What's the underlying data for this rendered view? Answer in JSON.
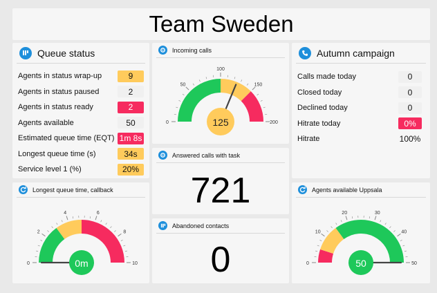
{
  "title": "Team Sweden",
  "colors": {
    "green": "#1ec85a",
    "yellow": "#ffcb5c",
    "red": "#f62b5f",
    "blue": "#1e8fdb",
    "panel": "#f6f6f6"
  },
  "queue_status": {
    "title": "Queue status",
    "icon": "bars-icon",
    "rows": [
      {
        "label": "Agents in status wrap-up",
        "value": "9",
        "color": "#ffcb5c"
      },
      {
        "label": "Agents in status paused",
        "value": "2",
        "color": "#f0f0f0"
      },
      {
        "label": "Agents in status ready",
        "value": "2",
        "color": "#f62b5f"
      },
      {
        "label": "Agents available",
        "value": "50",
        "color": "#f0f0f0"
      },
      {
        "label": "Estimated queue time (EQT)",
        "value": "1m 8s",
        "color": "#f62b5f"
      },
      {
        "label": "Longest queue time (s)",
        "value": "34s",
        "color": "#ffcb5c"
      },
      {
        "label": "Service level 1 (%)",
        "value": "20%",
        "color": "#ffcb5c"
      }
    ]
  },
  "incoming_calls": {
    "title": "Incoming calls",
    "icon": "gear-icon",
    "value": "125",
    "ticks": [
      "0",
      "50",
      "100",
      "150",
      "200"
    ],
    "needle": 125
  },
  "answered_calls": {
    "title": "Answered calls with task",
    "icon": "gear-icon",
    "value": "721"
  },
  "abandoned": {
    "title": "Abandoned contacts",
    "icon": "bars-icon",
    "value": "0"
  },
  "longest_callback": {
    "title": "Longest queue time, callback",
    "icon": "refresh-icon",
    "value": "0m",
    "ticks": [
      "0",
      "2",
      "4",
      "6",
      "8",
      "10"
    ],
    "needle": 0
  },
  "autumn_campaign": {
    "title": "Autumn campaign",
    "icon": "phone-icon",
    "rows": [
      {
        "label": "Calls made today",
        "value": "0",
        "color": "#f0f0f0"
      },
      {
        "label": "Closed today",
        "value": "0",
        "color": "#f0f0f0"
      },
      {
        "label": "Declined today",
        "value": "0",
        "color": "#f0f0f0"
      },
      {
        "label": "Hitrate today",
        "value": "0%",
        "color": "#f62b5f"
      },
      {
        "label": "Hitrate",
        "value": "100%",
        "color": "transparent"
      }
    ]
  },
  "agents_uppsala": {
    "title": "Agents available Uppsala",
    "icon": "refresh-icon",
    "value": "50",
    "ticks": [
      "0",
      "10",
      "20",
      "30",
      "40",
      "50"
    ],
    "needle": 50
  }
}
